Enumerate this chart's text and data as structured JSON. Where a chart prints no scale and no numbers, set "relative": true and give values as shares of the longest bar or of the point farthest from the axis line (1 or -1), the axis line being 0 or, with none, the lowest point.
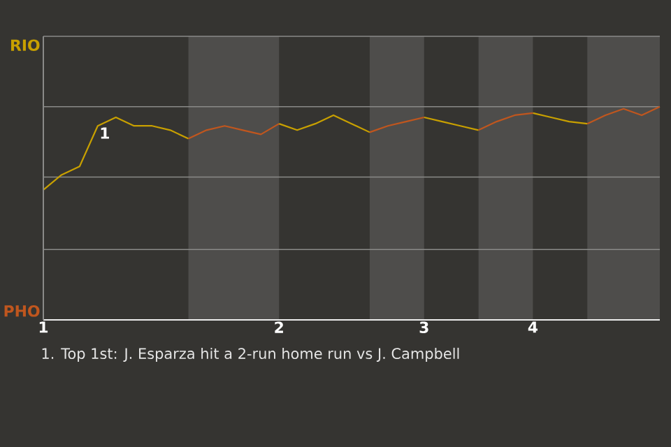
{
  "chart_data": {
    "type": "line",
    "categories": [
      "1",
      null,
      null,
      null,
      null,
      null,
      null,
      null,
      null,
      null,
      null,
      null,
      null,
      "2",
      null,
      null,
      null,
      null,
      null,
      null,
      null,
      "3",
      null,
      null,
      null,
      null,
      null,
      "4",
      null,
      null,
      null,
      null,
      null,
      null,
      null
    ],
    "relative": true,
    "series": [
      {
        "name": "RIO",
        "color": "#c8a000",
        "values": [
          0.61,
          0.68,
          0.72,
          0.91,
          0.95,
          0.91,
          0.91,
          0.89,
          0.85,
          null,
          null,
          null,
          null,
          0.92,
          0.89,
          0.92,
          0.96,
          0.92,
          0.88,
          null,
          null,
          0.95,
          0.93,
          0.91,
          0.89,
          null,
          null,
          0.97,
          0.95,
          0.93,
          0.92,
          null,
          null,
          null,
          null
        ]
      },
      {
        "name": "PHO",
        "color": "#c0561e",
        "values": [
          null,
          null,
          null,
          null,
          null,
          null,
          null,
          null,
          0.85,
          0.89,
          0.91,
          0.89,
          0.87,
          0.92,
          null,
          null,
          null,
          null,
          0.88,
          0.91,
          0.93,
          0.95,
          null,
          null,
          0.89,
          0.93,
          0.96,
          0.97,
          null,
          null,
          0.92,
          0.96,
          0.99,
          0.96,
          1
        ]
      }
    ],
    "ref_lines": [
      {
        "axis": "y",
        "value": 0.33,
        "color": "#8a8a88"
      },
      {
        "axis": "y",
        "value": 0.67,
        "color": "#8a8a88"
      },
      {
        "axis": "y",
        "value": 1,
        "color": "#8a8a88"
      },
      {
        "axis": "y",
        "value": 1.33,
        "color": "#8a8a88"
      }
    ],
    "annotations": [
      {
        "text": "1",
        "y": 0.91
      },
      "1. Top 1st: J. Esparza hit a 2-run home run vs J. Campbell"
    ],
    "line_style": "solid"
  }
}
